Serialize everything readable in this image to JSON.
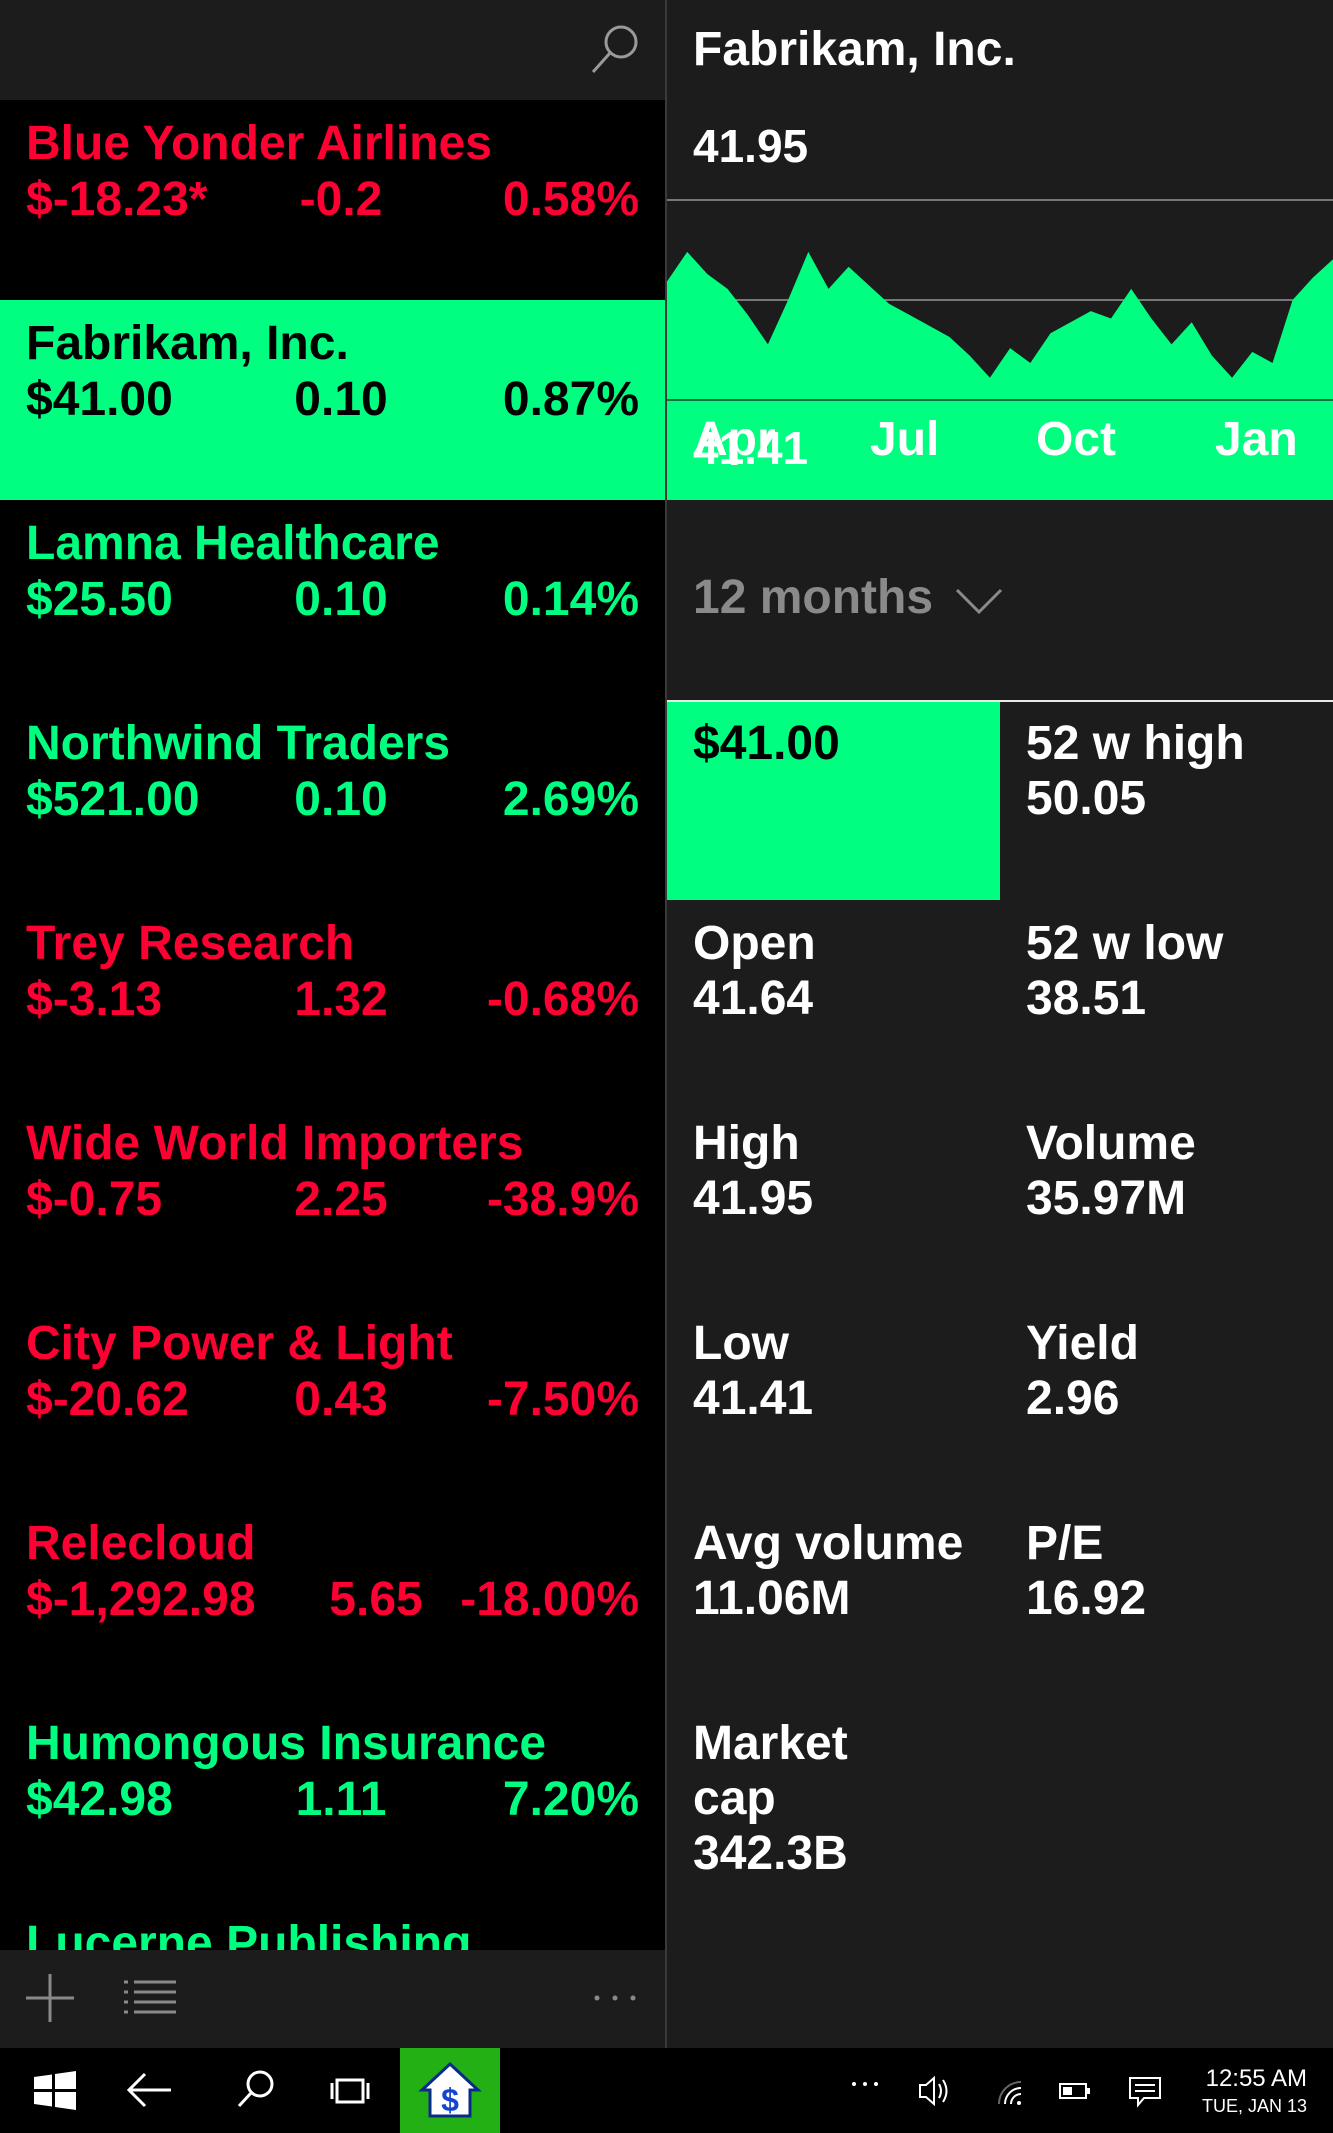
{
  "colors": {
    "up": "#00ff80",
    "down": "#ff0033",
    "panel": "#1c1c1c",
    "taskbar_app": "#22b014"
  },
  "stocks": [
    {
      "name": "Blue Yonder Airlines",
      "price": "$-18.23*",
      "change": "-0.2",
      "pct": "0.58%",
      "direction": "down",
      "selected": false
    },
    {
      "name": "Fabrikam, Inc.",
      "price": "$41.00",
      "change": "0.10",
      "pct": "0.87%",
      "direction": "up",
      "selected": true
    },
    {
      "name": "Lamna Healthcare",
      "price": "$25.50",
      "change": "0.10",
      "pct": "0.14%",
      "direction": "up",
      "selected": false
    },
    {
      "name": "Northwind Traders",
      "price": "$521.00",
      "change": "0.10",
      "pct": "2.69%",
      "direction": "up",
      "selected": false
    },
    {
      "name": "Trey Research",
      "price": "$-3.13",
      "change": "1.32",
      "pct": "-0.68%",
      "direction": "down",
      "selected": false
    },
    {
      "name": "Wide World Importers",
      "price": "$-0.75",
      "change": "2.25",
      "pct": "-38.9%",
      "direction": "down",
      "selected": false
    },
    {
      "name": "City Power & Light",
      "price": "$-20.62",
      "change": "0.43",
      "pct": "-7.50%",
      "direction": "down",
      "selected": false
    },
    {
      "name": "Relecloud",
      "price": "$-1,292.98",
      "change": "5.65",
      "pct": "-18.00%",
      "direction": "down",
      "selected": false
    },
    {
      "name": "Humongous Insurance",
      "price": "$42.98",
      "change": "1.11",
      "pct": "7.20%",
      "direction": "up",
      "selected": false
    },
    {
      "name": "Lucerne Publishing",
      "price": "",
      "change": "",
      "pct": "",
      "direction": "up",
      "selected": false
    }
  ],
  "detail": {
    "title": "Fabrikam, Inc.",
    "chart_high": "41.95",
    "chart_low": "41.41",
    "months": [
      "Apr",
      "Jul",
      "Oct",
      "Jan"
    ],
    "range": "12 months",
    "price_tile": "$41.00",
    "stats": [
      {
        "label": "52 w high",
        "value": "50.05"
      },
      {
        "label": "Open",
        "value": "41.64"
      },
      {
        "label": "52 w low",
        "value": "38.51"
      },
      {
        "label": "High",
        "value": "41.95"
      },
      {
        "label": "Volume",
        "value": "35.97M"
      },
      {
        "label": "Low",
        "value": "41.41"
      },
      {
        "label": "Yield",
        "value": "2.96"
      },
      {
        "label": "Avg volume",
        "value": "11.06M"
      },
      {
        "label": "P/E",
        "value": "16.92"
      },
      {
        "label": "Market cap",
        "value": "342.3B"
      }
    ]
  },
  "chart_data": {
    "type": "area",
    "ylim": [
      41.41,
      41.95
    ],
    "values": [
      41.73,
      41.81,
      41.75,
      41.71,
      41.64,
      41.56,
      41.68,
      41.81,
      41.71,
      41.77,
      41.72,
      41.67,
      41.64,
      41.61,
      41.58,
      41.53,
      41.47,
      41.55,
      41.51,
      41.59,
      41.62,
      41.65,
      41.63,
      41.71,
      41.63,
      41.56,
      41.62,
      41.53,
      41.47,
      41.54,
      41.51,
      41.68,
      41.74,
      41.79
    ]
  },
  "footer": {
    "add_icon": "plus-icon",
    "list_icon": "list-icon",
    "more_icon": "ellipsis-icon"
  },
  "taskbar": {
    "time": "12:55 AM",
    "date": "TUE, JAN 13",
    "icons": [
      "windows-logo-icon",
      "back-arrow-icon",
      "search-icon",
      "task-view-icon",
      "stocks-app-icon",
      "overflow-icon",
      "volume-icon",
      "wifi-icon",
      "battery-icon",
      "action-center-icon"
    ]
  }
}
